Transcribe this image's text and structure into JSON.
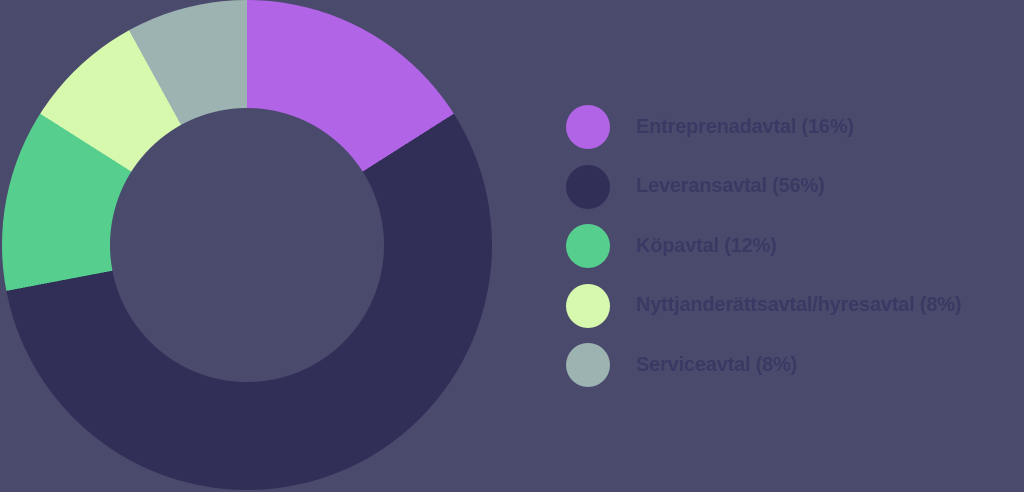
{
  "background": "#4A4A6C",
  "text_color": "#3A3964",
  "chart_data": {
    "type": "pie",
    "subtype": "donut",
    "title": "",
    "legend_position": "right",
    "start_angle_deg": 0,
    "direction": "clockwise",
    "inner_radius_ratio": 0.56,
    "unit": "%",
    "categories": [
      "Entreprenadavtal",
      "Leveransavtal",
      "Köpavtal",
      "Nyttjanderättsavtal/hyresavtal",
      "Serviceavtal"
    ],
    "values": [
      16,
      56,
      12,
      8,
      8
    ],
    "items": [
      {
        "label": "Entreprenadavtal",
        "value": 16,
        "display": "Entreprenadavtal (16%)",
        "color": "#B164E6"
      },
      {
        "label": "Leveransavtal",
        "value": 56,
        "display": "Leveransavtal (56%)",
        "color": "#312F58"
      },
      {
        "label": "Köpavtal",
        "value": 12,
        "display": "Köpavtal (12%)",
        "color": "#56CF8E"
      },
      {
        "label": "Nyttjanderättsavtal/hyresavtal",
        "value": 8,
        "display": "Nyttjanderättsavtal/hyresavtal (8%)",
        "color": "#D7F9AE"
      },
      {
        "label": "Serviceavtal",
        "value": 8,
        "display": "Serviceavtal (8%)",
        "color": "#9CB3B1"
      }
    ]
  }
}
